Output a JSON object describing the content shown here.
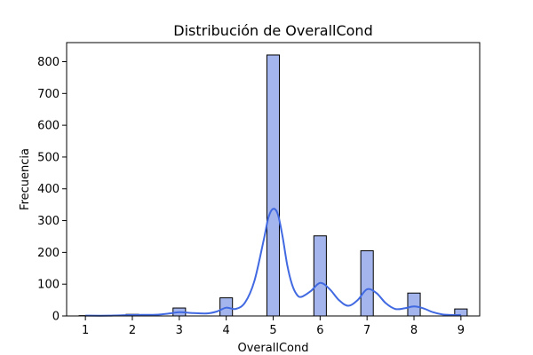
{
  "chart_data": {
    "type": "bar",
    "title": "Distribución de OverallCond",
    "xlabel": "OverallCond",
    "ylabel": "Frecuencia",
    "xlim": [
      0.6,
      9.4
    ],
    "ylim": [
      0,
      860
    ],
    "x_ticks": [
      1,
      2,
      3,
      4,
      5,
      6,
      7,
      8,
      9
    ],
    "y_ticks": [
      0,
      100,
      200,
      300,
      400,
      500,
      600,
      700,
      800
    ],
    "bin_width": 0.2667,
    "series": [
      {
        "type": "histogram",
        "x": [
          1,
          2,
          3,
          4,
          5,
          6,
          7,
          8,
          9
        ],
        "values": [
          1,
          5,
          25,
          57,
          821,
          252,
          205,
          72,
          22
        ]
      },
      {
        "type": "kde",
        "x": [
          1,
          1.5,
          2,
          2.5,
          2.8,
          3,
          3.3,
          3.6,
          3.8,
          4,
          4.2,
          4.4,
          4.6,
          4.8,
          4.9,
          5,
          5.1,
          5.2,
          5.3,
          5.4,
          5.5,
          5.6,
          5.8,
          6,
          6.2,
          6.4,
          6.6,
          6.8,
          7,
          7.2,
          7.4,
          7.6,
          7.8,
          8,
          8.2,
          8.4,
          8.6,
          8.8,
          9
        ],
        "values": [
          1,
          1,
          3,
          4,
          8,
          12,
          9,
          8,
          14,
          26,
          22,
          42,
          110,
          240,
          310,
          337,
          320,
          250,
          160,
          100,
          68,
          60,
          78,
          104,
          85,
          50,
          32,
          50,
          84,
          72,
          40,
          22,
          24,
          30,
          24,
          12,
          5,
          3,
          3
        ]
      }
    ],
    "colors": {
      "bar_fill": "#a3b5ec",
      "bar_edge": "#000000",
      "kde_line": "#4169e1"
    }
  }
}
